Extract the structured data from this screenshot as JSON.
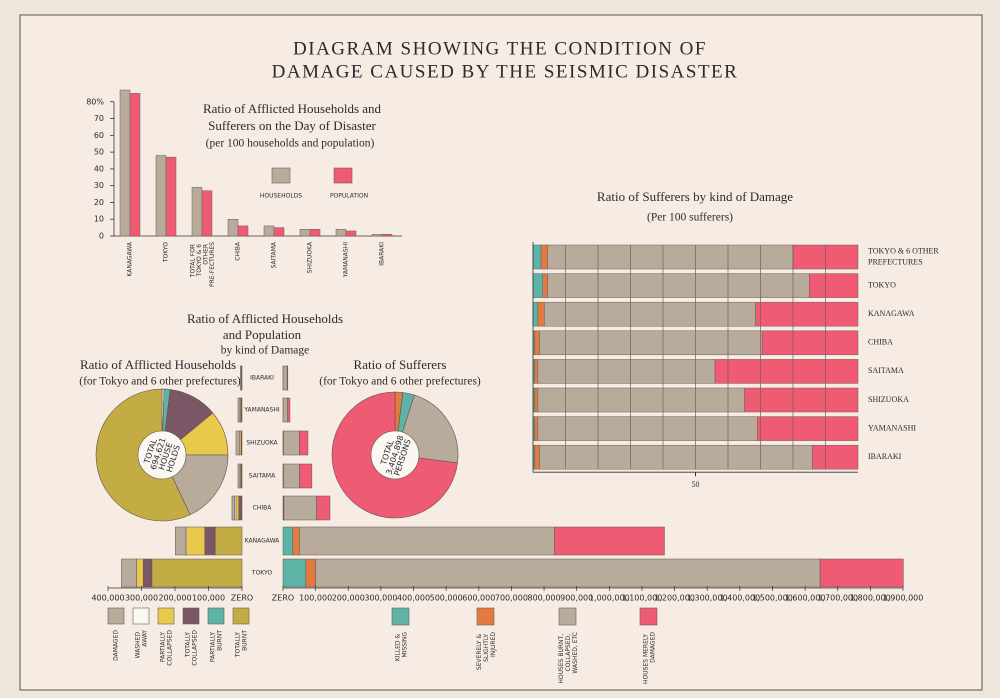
{
  "title": [
    "DIAGRAM SHOWING THE CONDITION OF",
    "DAMAGE CAUSED BY THE SEISMIC DISASTER"
  ],
  "chart_data": [
    {
      "type": "bar",
      "title": [
        "Ratio of Afflicted Households and",
        "Sufferers on the Day of Disaster"
      ],
      "subtitle": "(per 100 households and population)",
      "categories": [
        "KANAGAWA",
        "TOKYO",
        "TOTAL FOR TOKYO & 6 OTHER PRE-FECTURES",
        "CHIBA",
        "SAITAMA",
        "SHIZUOKA",
        "YAMANASHI",
        "IBARAKI"
      ],
      "series": [
        {
          "name": "HOUSEHOLDS",
          "color": "#b8ab9b",
          "values": [
            87,
            48,
            29,
            10,
            6,
            4,
            4,
            1
          ]
        },
        {
          "name": "POPULATION",
          "color": "#ef5b73",
          "values": [
            85,
            47,
            27,
            6,
            5,
            4,
            3,
            1
          ]
        }
      ],
      "ylim": [
        0,
        90
      ],
      "yticks": [
        0,
        10,
        20,
        30,
        40,
        50,
        60,
        70,
        {
          "value": 80,
          "label": "80%"
        }
      ]
    },
    {
      "type": "hbar_stacked",
      "title": "Ratio of Sufferers by kind of Damage",
      "subtitle": "(Per 100 sufferers)",
      "categories": [
        "TOKYO & 6 OTHER PREFECTURES",
        "TOKYO",
        "KANAGAWA",
        "CHIBA",
        "SAITAMA",
        "SHIZUOKA",
        "YAMANASHI",
        "IBARAKI"
      ],
      "series": [
        {
          "name": "KILLED & MISSING",
          "color": "#5db3a6",
          "values": [
            2.5,
            3,
            1.5,
            0.5,
            0.5,
            0.5,
            0.5,
            0.5
          ]
        },
        {
          "name": "SEVERELY & SLIGHTLY INJURED",
          "color": "#e37a3f",
          "values": [
            2,
            1.5,
            2,
            1.5,
            1,
            1,
            1,
            1.5
          ]
        },
        {
          "name": "HOUSES BURNT, COLLAPSED, WASHED, ETC",
          "color": "#b8ab9b",
          "values": [
            75.5,
            80.5,
            65,
            68.5,
            54.5,
            63.5,
            67.5,
            84
          ]
        },
        {
          "name": "HOUSES MERELY DAMAGED",
          "color": "#ef5b73",
          "values": [
            20,
            15,
            31.5,
            29.5,
            44,
            35,
            31,
            14
          ]
        }
      ],
      "xlim": [
        0,
        100
      ],
      "xticks": [
        50
      ]
    },
    {
      "type": "butterfly",
      "title": [
        "Ratio of Afflicted Households",
        "and Population"
      ],
      "subtitle": "by kind of Damage",
      "categories": [
        "IBARAKI",
        "YAMANASHI",
        "SHIZUOKA",
        "SAITAMA",
        "CHIBA",
        "KANAGAWA",
        "TOKYO"
      ],
      "left_series": [
        {
          "name": "DAMAGED",
          "color": "#b8ab9b",
          "values": [
            3000,
            6000,
            10000,
            6000,
            8000,
            30000,
            45000
          ]
        },
        {
          "name": "WASHED AWAY",
          "color": "#fbf7f2",
          "values": [
            0,
            0,
            0,
            0,
            4000,
            4000,
            0
          ]
        },
        {
          "name": "PARTIALLY COLLAPSED",
          "color": "#e9c94b",
          "values": [
            1000,
            3000,
            5000,
            3000,
            8000,
            54000,
            20000
          ]
        },
        {
          "name": "TOTALLY COLLAPSED",
          "color": "#7b5667",
          "values": [
            1000,
            3000,
            3000,
            3000,
            10000,
            30000,
            24000
          ]
        },
        {
          "name": "PARTIALLY BURNT",
          "color": "#5db3a6",
          "values": [
            0,
            0,
            0,
            0,
            0,
            1000,
            2000
          ]
        },
        {
          "name": "TOTALLY BURNT",
          "color": "#c4ac45",
          "values": [
            0,
            0,
            0,
            0,
            0,
            80000,
            269000
          ]
        }
      ],
      "right_series": [
        {
          "color": "#5db3a6",
          "values": [
            0,
            0,
            500,
            500,
            1000,
            30000,
            70000
          ]
        },
        {
          "color": "#e37a3f",
          "values": [
            200,
            200,
            1000,
            1000,
            2000,
            20000,
            30000
          ]
        },
        {
          "color": "#b8ab9b",
          "values": [
            12600,
            14000,
            49000,
            49000,
            100000,
            782000,
            1546000
          ]
        },
        {
          "color": "#ef5b73",
          "values": [
            2000,
            7000,
            26000,
            38000,
            41000,
            337000,
            255000
          ]
        }
      ],
      "xlim_left": [
        0,
        400000
      ],
      "xticks_left": [
        {
          "value": 400000,
          "label": "400,000"
        },
        {
          "value": 300000,
          "label": "300,000"
        },
        {
          "value": 200000,
          "label": "200,000"
        },
        {
          "value": 100000,
          "label": "100,000"
        },
        {
          "value": 0,
          "label": "ZERO"
        }
      ],
      "xlim_right": [
        0,
        1900000
      ],
      "xticks_right": [
        {
          "value": 0,
          "label": "ZERO"
        },
        {
          "value": 100000,
          "label": "100,000"
        },
        {
          "value": 200000,
          "label": "200,000"
        },
        {
          "value": 300000,
          "label": "300,000"
        },
        {
          "value": 400000,
          "label": "400,000"
        },
        {
          "value": 500000,
          "label": "500,000"
        },
        {
          "value": 600000,
          "label": "600,000"
        },
        {
          "value": 700000,
          "label": "700,000"
        },
        {
          "value": 800000,
          "label": "800,000"
        },
        {
          "value": 900000,
          "label": "900,000"
        },
        {
          "value": 1000000,
          "label": "1,000,000"
        },
        {
          "value": 1100000,
          "label": "1,100,000"
        },
        {
          "value": 1200000,
          "label": "1,200,000"
        },
        {
          "value": 1300000,
          "label": "1,300,000"
        },
        {
          "value": 1400000,
          "label": "1,400,000"
        },
        {
          "value": 1500000,
          "label": "1,500,000"
        },
        {
          "value": 1600000,
          "label": "1,600,000"
        },
        {
          "value": 1700000,
          "label": "1,700,000"
        },
        {
          "value": 1800000,
          "label": "1,800,000"
        },
        {
          "value": 1900000,
          "label": "1,900,000"
        }
      ]
    },
    {
      "type": "pie",
      "title": "Ratio of Afflicted Households",
      "subtitle": "(for Tokyo and 6 other prefectures)",
      "center_label": [
        "TOTAL",
        "694,621",
        "HOUSE",
        "HOLDS"
      ],
      "values": [
        0.5,
        1.5,
        12,
        11,
        18,
        57
      ],
      "colors": [
        "#fbf7f2",
        "#5db3a6",
        "#7b5667",
        "#e9c94b",
        "#b8ab9b",
        "#c4ac45"
      ]
    },
    {
      "type": "pie",
      "title": "Ratio of Sufferers",
      "subtitle": "(for Tokyo and 6 other prefectures)",
      "center_label": [
        "TOTAL",
        "3,404,898",
        "PERSONS"
      ],
      "values": [
        2,
        3,
        22,
        73
      ],
      "colors": [
        "#e37a3f",
        "#5db3a6",
        "#b8ab9b",
        "#ef5b73"
      ]
    }
  ]
}
